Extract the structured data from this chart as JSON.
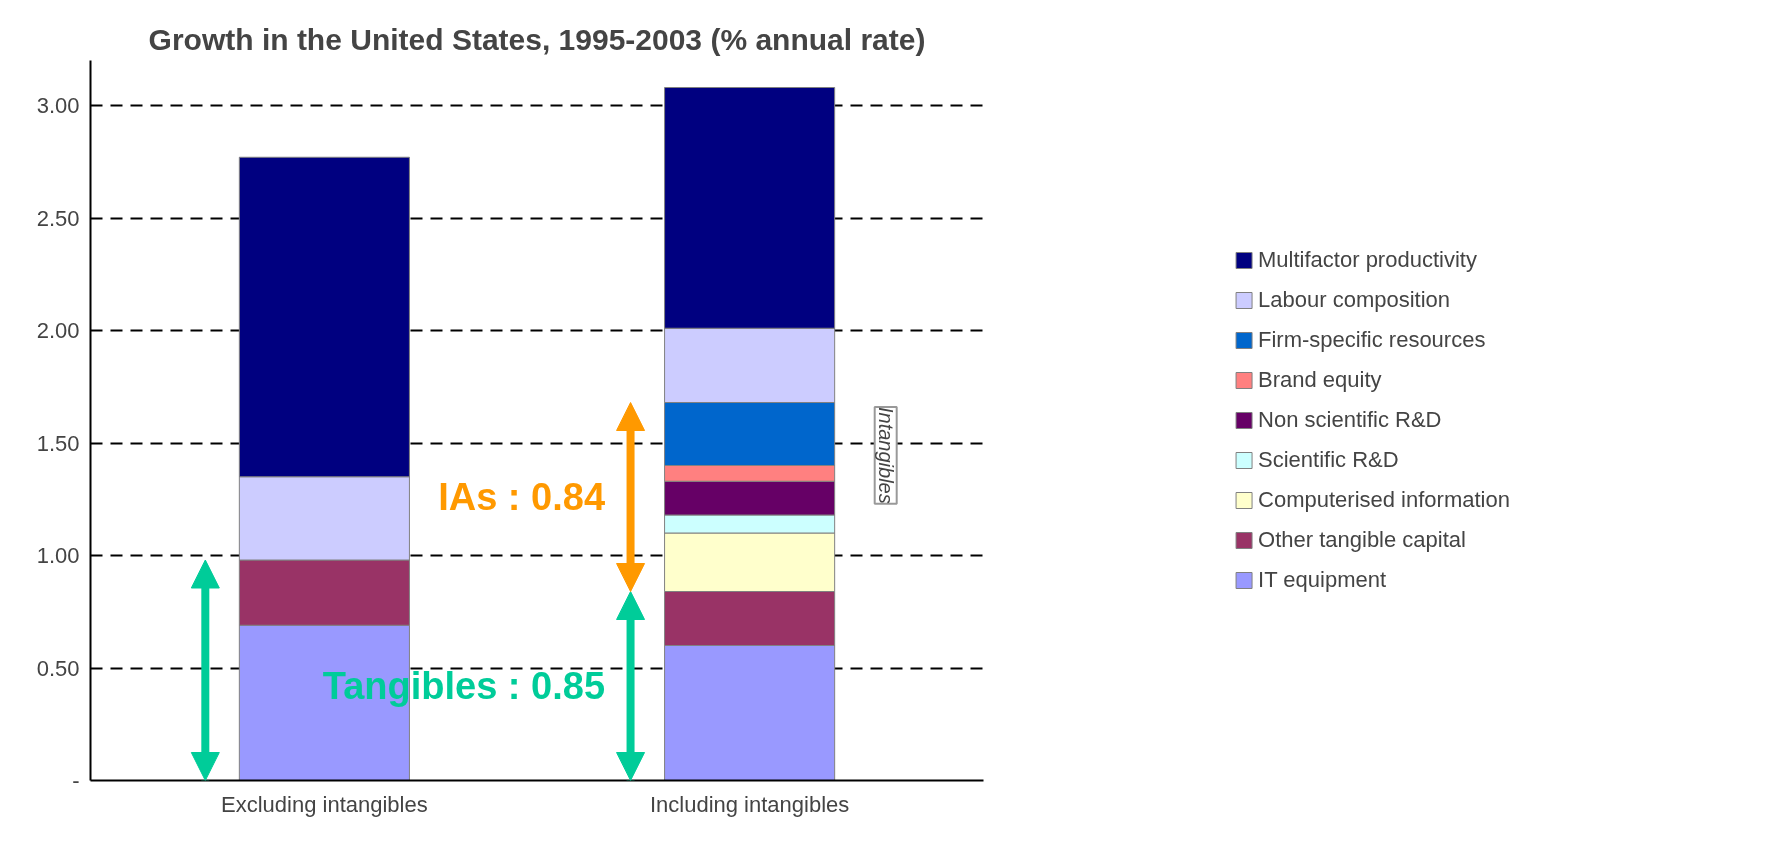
{
  "chart_data": {
    "type": "bar",
    "stacked": true,
    "title": "Growth in the United States, 1995-2003 (% annual rate)",
    "categories": [
      "Excluding intangibles",
      "Including intangibles"
    ],
    "series": [
      {
        "name": "IT equipment",
        "color": "#9999ff",
        "values": [
          0.69,
          0.6
        ]
      },
      {
        "name": "Other tangible capital",
        "color": "#993366",
        "values": [
          0.29,
          0.24
        ]
      },
      {
        "name": "Computerised information",
        "color": "#ffffcc",
        "values": [
          null,
          0.26
        ]
      },
      {
        "name": "Scientific R&D",
        "color": "#ccffff",
        "values": [
          null,
          0.08
        ]
      },
      {
        "name": "Non scientific R&D",
        "color": "#660066",
        "values": [
          null,
          0.15
        ]
      },
      {
        "name": "Brand equity",
        "color": "#ff8080",
        "values": [
          null,
          0.07
        ]
      },
      {
        "name": "Firm-specific resources",
        "color": "#0066cc",
        "values": [
          null,
          0.28
        ]
      },
      {
        "name": "Labour composition",
        "color": "#ccccff",
        "values": [
          0.37,
          0.33
        ]
      },
      {
        "name": "Multifactor productivity",
        "color": "#000080",
        "values": [
          1.42,
          1.07
        ]
      }
    ],
    "ylim": [
      0,
      3.2
    ],
    "yticks": [
      {
        "value": 0,
        "label": "-"
      },
      {
        "value": 0.5,
        "label": "0.50"
      },
      {
        "value": 1,
        "label": "1.00"
      },
      {
        "value": 1.5,
        "label": "1.50"
      },
      {
        "value": 2,
        "label": "2.00"
      },
      {
        "value": 2.5,
        "label": "2.50"
      },
      {
        "value": 3,
        "label": "3.00"
      }
    ],
    "grid": "y",
    "line_style": "dashed",
    "legend": "right",
    "annotations": [
      "IAs : 0.84",
      "Tangibles : 0.85",
      "Intangibles"
    ]
  }
}
